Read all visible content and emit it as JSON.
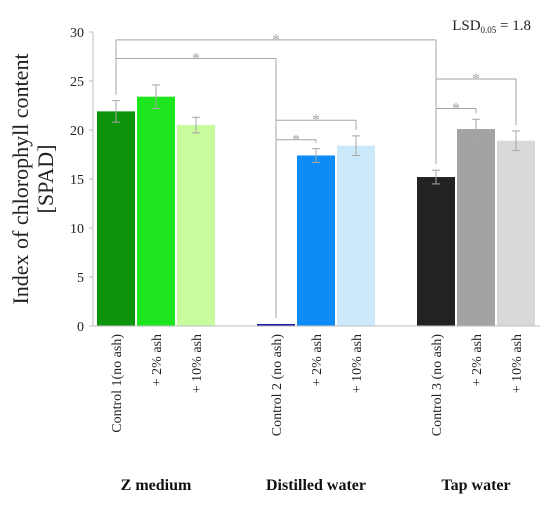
{
  "chart_data": {
    "type": "bar",
    "ylabel_line1": "Index of chlorophyll content",
    "ylabel_line2": "[SPAD]",
    "ylim": [
      0,
      30
    ],
    "yticks": [
      0,
      5,
      10,
      15,
      20,
      25,
      30
    ],
    "lsd": {
      "prefix": "LSD",
      "sub": "0.05",
      "value": " = 1.8"
    },
    "significance_symbol": "*",
    "groups": [
      {
        "name": "Z medium",
        "bars": [
          {
            "label": "Control 1(no ash)",
            "value": 21.9,
            "error": 1.1,
            "color": "#0b930b"
          },
          {
            "label": "+ 2% ash",
            "value": 23.4,
            "error": 1.2,
            "color": "#1ee61e"
          },
          {
            "label": "+ 10% ash",
            "value": 20.5,
            "error": 0.8,
            "color": "#c8fb9c"
          }
        ]
      },
      {
        "name": "Distilled water",
        "bars": [
          {
            "label": "Control 2 (no ash)",
            "value": 0.2,
            "error": 0,
            "color": "#1414a0"
          },
          {
            "label": "+ 2% ash",
            "value": 17.4,
            "error": 0.7,
            "color": "#0d8cf7"
          },
          {
            "label": "+ 10% ash",
            "value": 18.4,
            "error": 1.0,
            "color": "#cce9fb"
          }
        ]
      },
      {
        "name": "Tap water",
        "bars": [
          {
            "label": "Control 3 (no ash)",
            "value": 15.2,
            "error": 0.7,
            "color": "#222222"
          },
          {
            "label": "+ 2% ash",
            "value": 20.1,
            "error": 1.0,
            "color": "#a3a3a3"
          },
          {
            "label": "+ 10% ash",
            "value": 18.9,
            "error": 1.0,
            "color": "#d9d9d9"
          }
        ]
      }
    ],
    "comparisons": [
      {
        "from": [
          0,
          0
        ],
        "to": [
          2,
          0
        ],
        "level": 29.2
      },
      {
        "from": [
          0,
          0
        ],
        "to": [
          1,
          0
        ],
        "level": 27.3
      },
      {
        "from": [
          1,
          0
        ],
        "to": [
          1,
          1
        ],
        "level": 19.0
      },
      {
        "from": [
          1,
          0
        ],
        "to": [
          1,
          2
        ],
        "level": 21.0
      },
      {
        "from": [
          2,
          0
        ],
        "to": [
          2,
          1
        ],
        "level": 22.2
      },
      {
        "from": [
          2,
          0
        ],
        "to": [
          2,
          2
        ],
        "level": 25.2
      }
    ]
  }
}
